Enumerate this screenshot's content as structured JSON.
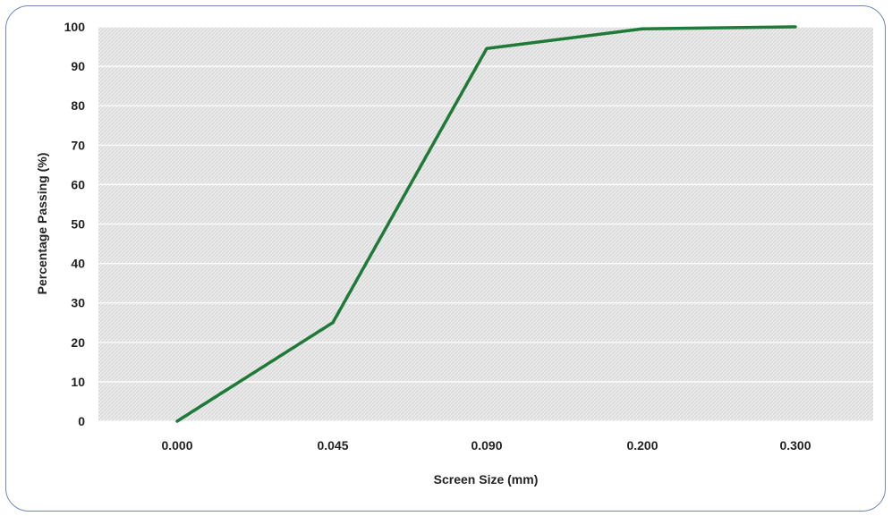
{
  "chart_data": {
    "type": "line",
    "title": "",
    "xlabel": "Screen Size (mm)",
    "ylabel": "Percentage Passing (%)",
    "categories": [
      "0.000",
      "0.045",
      "0.090",
      "0.200",
      "0.300"
    ],
    "series": [
      {
        "values": [
          0,
          25,
          94.5,
          99.5,
          100
        ],
        "color": "#1f7a38"
      }
    ],
    "ylim": [
      0,
      100
    ],
    "yticks": [
      0,
      10,
      20,
      30,
      40,
      50,
      60,
      70,
      80,
      90,
      100
    ],
    "grid": true,
    "legend": "none",
    "plot_background": "#e6e6e6"
  }
}
